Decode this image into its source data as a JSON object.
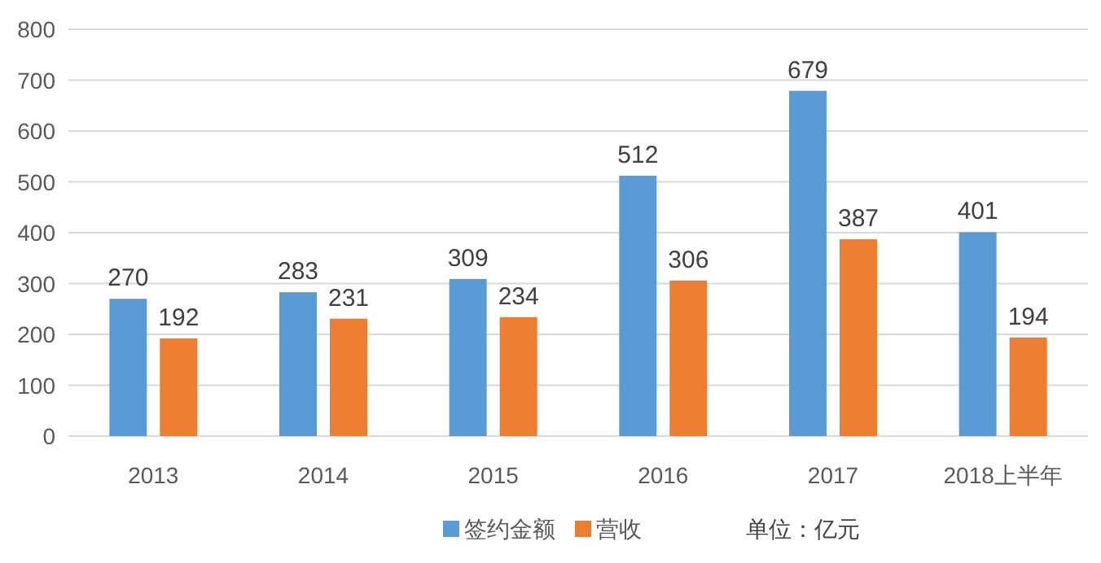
{
  "chart_data": {
    "type": "bar",
    "categories": [
      "2013",
      "2014",
      "2015",
      "2016",
      "2017",
      "2018上半年"
    ],
    "series": [
      {
        "name": "签约金额",
        "color": "#5b9bd5",
        "values": [
          270,
          283,
          309,
          512,
          679,
          401
        ]
      },
      {
        "name": "营收",
        "color": "#ed7d31",
        "values": [
          192,
          231,
          234,
          306,
          387,
          194
        ]
      }
    ],
    "ylim": [
      0,
      800
    ],
    "yticks": [
      0,
      100,
      200,
      300,
      400,
      500,
      600,
      700,
      800
    ],
    "grid": "y",
    "legend": "bottom",
    "data_labels": true,
    "annotations": [
      "单位：亿元"
    ]
  }
}
